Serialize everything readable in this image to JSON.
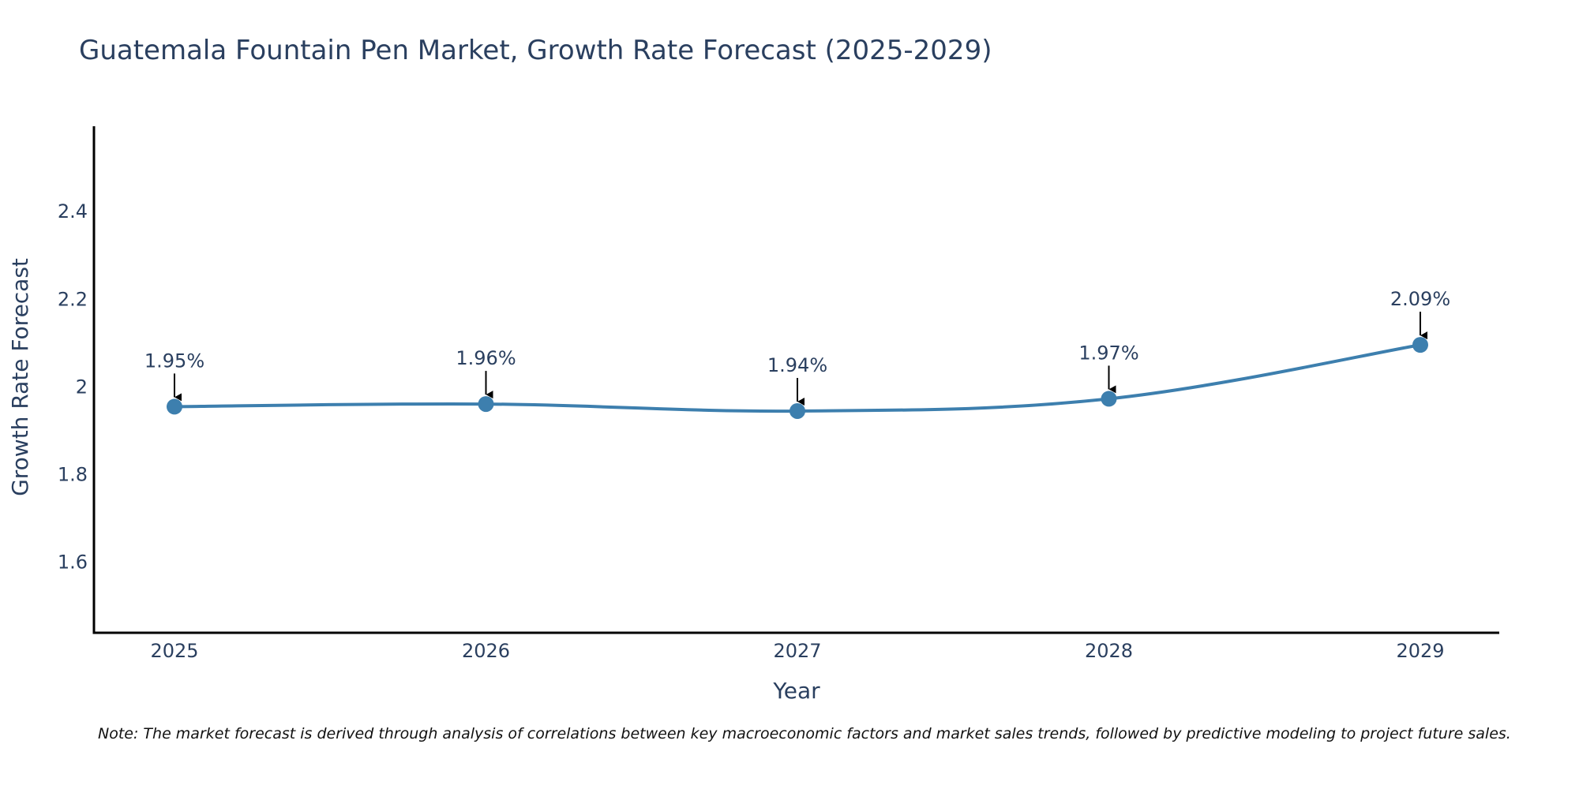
{
  "chart_data": {
    "type": "line",
    "title": "Guatemala Fountain Pen Market, Growth Rate Forecast (2025-2029)",
    "xlabel": "Year",
    "ylabel": "Growth Rate Forecast",
    "categories": [
      "2025",
      "2026",
      "2027",
      "2028",
      "2029"
    ],
    "values": [
      1.953,
      1.959,
      1.943,
      1.971,
      2.094
    ],
    "data_labels": [
      "1.95%",
      "1.96%",
      "1.94%",
      "1.97%",
      "2.09%"
    ],
    "yticks": [
      1.6,
      1.8,
      2,
      2.2,
      2.4
    ],
    "ytick_labels": [
      "1.6",
      "1.8",
      "2",
      "2.2",
      "2.4"
    ],
    "ylim": [
      1.437,
      2.593
    ],
    "grid": false,
    "series_color": "#3d7fae"
  },
  "note": "Note: The market forecast is derived through analysis of correlations between key macroeconomic factors and market sales trends, followed by predictive modeling to project future sales."
}
